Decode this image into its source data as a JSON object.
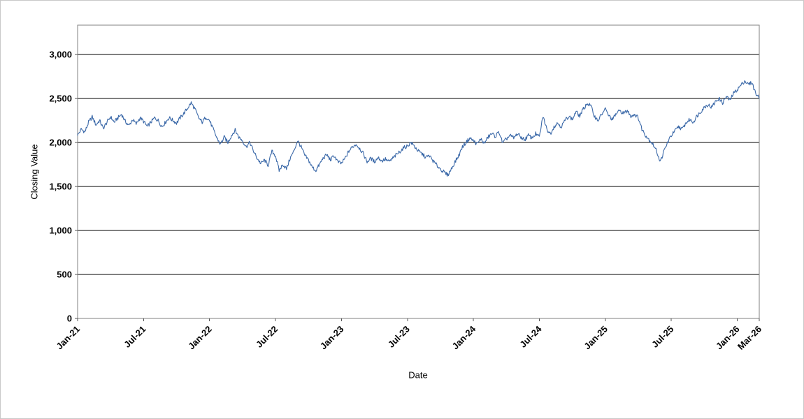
{
  "chart_data": {
    "type": "line",
    "title": "",
    "xlabel": "Date",
    "ylabel": "Closing Value",
    "legend": "none",
    "grid": "horizontal-only",
    "x_axis": {
      "unit": "month index from Jan-2021",
      "range": [
        0,
        62
      ],
      "tick_positions": [
        0,
        6,
        12,
        18,
        24,
        30,
        36,
        42,
        48,
        54,
        60,
        62
      ],
      "tick_labels": [
        "Jan-21",
        "Jul-21",
        "Jan-22",
        "Jul-22",
        "Jan-23",
        "Jul-23",
        "Jan-24",
        "Jul-24",
        "Jan-25",
        "Jul-25",
        "Jan-26",
        "Mar-26"
      ]
    },
    "y_axis": {
      "range": [
        0,
        3333
      ],
      "tick_values": [
        0,
        500,
        1000,
        1500,
        2000,
        2500,
        3000
      ],
      "tick_labels": [
        "0",
        "500",
        "1,000",
        "1,500",
        "2,000",
        "2,500",
        "3,000"
      ],
      "gridline_color": "#000000"
    },
    "series": [
      {
        "name": "Closing Value",
        "color": "#3a68a8",
        "points": [
          [
            0,
            2080
          ],
          [
            0.33,
            2150
          ],
          [
            0.67,
            2120
          ],
          [
            1,
            2230
          ],
          [
            1.33,
            2290
          ],
          [
            1.67,
            2200
          ],
          [
            2,
            2250
          ],
          [
            2.33,
            2160
          ],
          [
            2.67,
            2230
          ],
          [
            3,
            2290
          ],
          [
            3.33,
            2230
          ],
          [
            3.67,
            2280
          ],
          [
            4,
            2320
          ],
          [
            4.33,
            2240
          ],
          [
            4.67,
            2190
          ],
          [
            5,
            2260
          ],
          [
            5.33,
            2210
          ],
          [
            5.67,
            2280
          ],
          [
            6,
            2240
          ],
          [
            6.33,
            2180
          ],
          [
            6.67,
            2230
          ],
          [
            7,
            2280
          ],
          [
            7.33,
            2250
          ],
          [
            7.67,
            2180
          ],
          [
            8,
            2230
          ],
          [
            8.33,
            2280
          ],
          [
            8.67,
            2250
          ],
          [
            9,
            2220
          ],
          [
            9.33,
            2280
          ],
          [
            9.67,
            2330
          ],
          [
            10,
            2390
          ],
          [
            10.33,
            2450
          ],
          [
            10.67,
            2380
          ],
          [
            11,
            2280
          ],
          [
            11.33,
            2230
          ],
          [
            11.67,
            2290
          ],
          [
            12,
            2250
          ],
          [
            12.33,
            2150
          ],
          [
            12.67,
            2050
          ],
          [
            13,
            1980
          ],
          [
            13.33,
            2060
          ],
          [
            13.67,
            2000
          ],
          [
            14,
            2080
          ],
          [
            14.33,
            2140
          ],
          [
            14.67,
            2060
          ],
          [
            15,
            2020
          ],
          [
            15.33,
            1950
          ],
          [
            15.67,
            2000
          ],
          [
            16,
            1900
          ],
          [
            16.33,
            1820
          ],
          [
            16.67,
            1760
          ],
          [
            17,
            1800
          ],
          [
            17.33,
            1740
          ],
          [
            17.67,
            1900
          ],
          [
            18,
            1850
          ],
          [
            18.33,
            1680
          ],
          [
            18.67,
            1750
          ],
          [
            19,
            1700
          ],
          [
            19.33,
            1820
          ],
          [
            19.67,
            1900
          ],
          [
            20,
            2020
          ],
          [
            20.33,
            1950
          ],
          [
            20.67,
            1850
          ],
          [
            21,
            1800
          ],
          [
            21.33,
            1720
          ],
          [
            21.67,
            1680
          ],
          [
            22,
            1750
          ],
          [
            22.33,
            1820
          ],
          [
            22.67,
            1860
          ],
          [
            23,
            1800
          ],
          [
            23.33,
            1850
          ],
          [
            23.67,
            1780
          ],
          [
            24,
            1760
          ],
          [
            24.33,
            1820
          ],
          [
            24.67,
            1900
          ],
          [
            25,
            1950
          ],
          [
            25.33,
            1980
          ],
          [
            25.67,
            1930
          ],
          [
            26,
            1870
          ],
          [
            26.33,
            1780
          ],
          [
            26.67,
            1820
          ],
          [
            27,
            1780
          ],
          [
            27.33,
            1830
          ],
          [
            27.67,
            1790
          ],
          [
            28,
            1810
          ],
          [
            28.33,
            1780
          ],
          [
            28.67,
            1820
          ],
          [
            29,
            1860
          ],
          [
            29.33,
            1900
          ],
          [
            29.67,
            1940
          ],
          [
            30,
            1960
          ],
          [
            30.33,
            2000
          ],
          [
            30.67,
            1950
          ],
          [
            31,
            1900
          ],
          [
            31.33,
            1870
          ],
          [
            31.67,
            1830
          ],
          [
            32,
            1850
          ],
          [
            32.33,
            1790
          ],
          [
            32.67,
            1740
          ],
          [
            33,
            1700
          ],
          [
            33.33,
            1660
          ],
          [
            33.67,
            1630
          ],
          [
            34,
            1700
          ],
          [
            34.33,
            1780
          ],
          [
            34.67,
            1850
          ],
          [
            35,
            1950
          ],
          [
            35.33,
            2000
          ],
          [
            35.67,
            2050
          ],
          [
            36,
            2020
          ],
          [
            36.33,
            1980
          ],
          [
            36.67,
            2040
          ],
          [
            37,
            1990
          ],
          [
            37.33,
            2060
          ],
          [
            37.67,
            2100
          ],
          [
            38,
            2070
          ],
          [
            38.33,
            2120
          ],
          [
            38.67,
            1990
          ],
          [
            39,
            2040
          ],
          [
            39.33,
            2080
          ],
          [
            39.67,
            2050
          ],
          [
            40,
            2100
          ],
          [
            40.33,
            2060
          ],
          [
            40.67,
            2030
          ],
          [
            41,
            2080
          ],
          [
            41.33,
            2050
          ],
          [
            41.67,
            2100
          ],
          [
            42,
            2060
          ],
          [
            42.33,
            2300
          ],
          [
            42.67,
            2150
          ],
          [
            43,
            2100
          ],
          [
            43.33,
            2180
          ],
          [
            43.67,
            2220
          ],
          [
            44,
            2180
          ],
          [
            44.33,
            2250
          ],
          [
            44.67,
            2300
          ],
          [
            45,
            2260
          ],
          [
            45.33,
            2350
          ],
          [
            45.67,
            2300
          ],
          [
            46,
            2380
          ],
          [
            46.33,
            2440
          ],
          [
            46.67,
            2420
          ],
          [
            47,
            2300
          ],
          [
            47.33,
            2250
          ],
          [
            47.67,
            2320
          ],
          [
            48,
            2380
          ],
          [
            48.33,
            2300
          ],
          [
            48.67,
            2260
          ],
          [
            49,
            2330
          ],
          [
            49.33,
            2360
          ],
          [
            49.67,
            2330
          ],
          [
            50,
            2360
          ],
          [
            50.33,
            2300
          ],
          [
            50.67,
            2320
          ],
          [
            51,
            2280
          ],
          [
            51.33,
            2150
          ],
          [
            51.67,
            2080
          ],
          [
            52,
            2030
          ],
          [
            52.33,
            1980
          ],
          [
            52.67,
            1900
          ],
          [
            53,
            1780
          ],
          [
            53.33,
            1900
          ],
          [
            53.67,
            2000
          ],
          [
            54,
            2080
          ],
          [
            54.33,
            2130
          ],
          [
            54.67,
            2180
          ],
          [
            55,
            2150
          ],
          [
            55.33,
            2220
          ],
          [
            55.67,
            2260
          ],
          [
            56,
            2230
          ],
          [
            56.33,
            2300
          ],
          [
            56.67,
            2350
          ],
          [
            57,
            2400
          ],
          [
            57.33,
            2430
          ],
          [
            57.67,
            2400
          ],
          [
            58,
            2460
          ],
          [
            58.33,
            2500
          ],
          [
            58.67,
            2450
          ],
          [
            59,
            2520
          ],
          [
            59.33,
            2480
          ],
          [
            59.67,
            2560
          ],
          [
            60,
            2600
          ],
          [
            60.33,
            2650
          ],
          [
            60.67,
            2700
          ],
          [
            61,
            2660
          ],
          [
            61.33,
            2680
          ],
          [
            61.67,
            2560
          ],
          [
            62,
            2500
          ]
        ]
      }
    ],
    "render": {
      "noise_amplitude": 22,
      "samples_per_segment": 6,
      "plot_outline_color": "#808080",
      "tick_mark_color": "#555555",
      "background": "#ffffff"
    }
  }
}
